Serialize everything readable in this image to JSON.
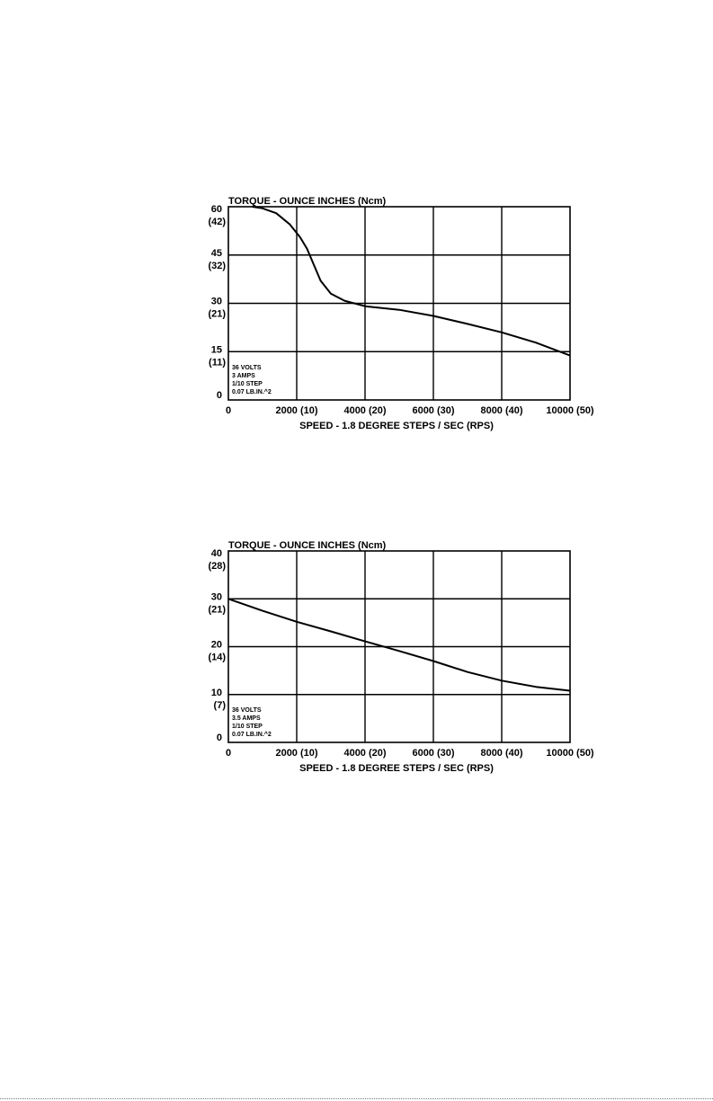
{
  "chart_data": [
    {
      "type": "line",
      "title": "TORQUE - OUNCE INCHES (Ncm)",
      "xlabel": "SPEED - 1.8 DEGREE STEPS / SEC (RPS)",
      "ylabel": "TORQUE - OUNCE INCHES (Ncm)",
      "xlim": [
        0,
        10000
      ],
      "ylim": [
        0,
        60
      ],
      "grid": true,
      "x_ticks": [
        0,
        2000,
        4000,
        6000,
        8000,
        10000
      ],
      "x_tick_labels": [
        "0",
        "2000 (10)",
        "4000 (20)",
        "6000 (30)",
        "8000 (40)",
        "10000 (50)"
      ],
      "y_ticks": [
        0,
        15,
        30,
        45,
        60
      ],
      "y_tick_labels": [
        [
          "0"
        ],
        [
          "15",
          "(11)"
        ],
        [
          "30",
          "(21)"
        ],
        [
          "45",
          "(32)"
        ],
        [
          "60",
          "(42)"
        ]
      ],
      "annotation": [
        "36 VOLTS",
        "3 AMPS",
        "1/10 STEP",
        "0.07 LB.IN.^2"
      ],
      "series": [
        {
          "x": [
            700,
            1000,
            1400,
            1800,
            2100,
            2300,
            2500,
            2700,
            3000,
            3400,
            4000,
            5000,
            6000,
            7000,
            8000,
            9000,
            10000
          ],
          "y": [
            60,
            59.5,
            58,
            54.5,
            50.5,
            47,
            42,
            37,
            33,
            30.8,
            29.1,
            28,
            26.1,
            23.6,
            21,
            17.8,
            13.8
          ]
        }
      ]
    },
    {
      "type": "line",
      "title": "TORQUE - OUNCE INCHES (Ncm)",
      "xlabel": "SPEED - 1.8 DEGREE STEPS / SEC (RPS)",
      "ylabel": "TORQUE - OUNCE INCHES (Ncm)",
      "xlim": [
        0,
        10000
      ],
      "ylim": [
        0,
        40
      ],
      "grid": true,
      "x_ticks": [
        0,
        2000,
        4000,
        6000,
        8000,
        10000
      ],
      "x_tick_labels": [
        "0",
        "2000 (10)",
        "4000 (20)",
        "6000 (30)",
        "8000 (40)",
        "10000 (50)"
      ],
      "y_ticks": [
        0,
        10,
        20,
        30,
        40
      ],
      "y_tick_labels": [
        [
          "0"
        ],
        [
          "10",
          "(7)"
        ],
        [
          "20",
          "(14)"
        ],
        [
          "30",
          "(21)"
        ],
        [
          "40",
          "(28)"
        ]
      ],
      "annotation": [
        "36 VOLTS",
        "3.5 AMPS",
        "1/10 STEP",
        "0.07 LB.IN.^2"
      ],
      "series": [
        {
          "x": [
            0,
            1000,
            2000,
            3000,
            4000,
            5000,
            6000,
            7000,
            8000,
            9000,
            10000
          ],
          "y": [
            30,
            27.5,
            25.2,
            23.2,
            21.1,
            19.1,
            17,
            14.7,
            12.9,
            11.6,
            10.8
          ]
        }
      ]
    }
  ]
}
